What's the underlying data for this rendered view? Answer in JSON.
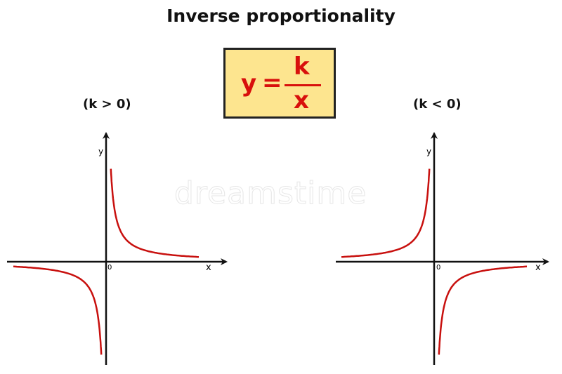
{
  "title": "Inverse proportionality",
  "formula": {
    "lhs": "y",
    "equals": "=",
    "numerator": "k",
    "denominator": "x"
  },
  "graphs": [
    {
      "caption": "(k > 0)",
      "x_label": "x",
      "y_label": "y",
      "origin_label": "0",
      "sign": "positive"
    },
    {
      "caption": "(k < 0)",
      "x_label": "x",
      "y_label": "y",
      "origin_label": "0",
      "sign": "negative"
    }
  ],
  "watermark": "dreamstime",
  "colors": {
    "curve": "#c8100e",
    "formula_bg": "#fde58f",
    "formula_text": "#d8100c",
    "axis": "#111111"
  }
}
